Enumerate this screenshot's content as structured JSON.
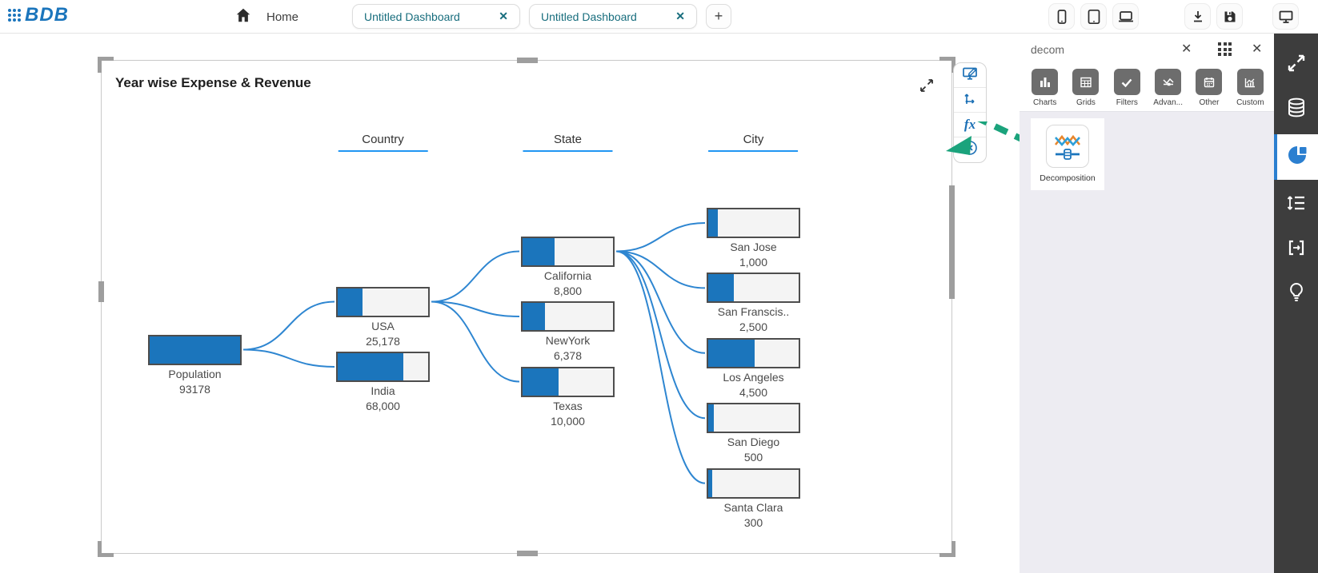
{
  "topbar": {
    "logo_text": "BDB",
    "home_label": "Home",
    "tabs": [
      {
        "label": "Untitled Dashboard",
        "close_icon": "✕"
      },
      {
        "label": "Untitled Dashboard",
        "close_icon": "✕"
      }
    ],
    "new_tab_label": "+"
  },
  "widget": {
    "title": "Year wise Expense & Revenue",
    "toolbar": {
      "fx_label": "fx"
    }
  },
  "chart_data": {
    "type": "decomposition_tree",
    "title": "Year wise Expense & Revenue",
    "column_headers": [
      "Country",
      "State",
      "City"
    ],
    "legend_position": "none",
    "nodes": [
      {
        "id": "population",
        "label": "Population",
        "value": 93178,
        "value_label": "93178",
        "level": 0,
        "slot": 0,
        "parent": null,
        "fill_pct": 100
      },
      {
        "id": "usa",
        "label": "USA",
        "value": 25178,
        "value_label": "25,178",
        "level": 1,
        "slot": 0,
        "parent": "population",
        "fill_pct": 27
      },
      {
        "id": "india",
        "label": "India",
        "value": 68000,
        "value_label": "68,000",
        "level": 1,
        "slot": 1,
        "parent": "population",
        "fill_pct": 73
      },
      {
        "id": "california",
        "label": "California",
        "value": 8800,
        "value_label": "8,800",
        "level": 2,
        "slot": 0,
        "parent": "usa",
        "fill_pct": 35
      },
      {
        "id": "newyork",
        "label": "NewYork",
        "value": 6378,
        "value_label": "6,378",
        "level": 2,
        "slot": 1,
        "parent": "usa",
        "fill_pct": 25
      },
      {
        "id": "texas",
        "label": "Texas",
        "value": 10000,
        "value_label": "10,000",
        "level": 2,
        "slot": 2,
        "parent": "usa",
        "fill_pct": 40
      },
      {
        "id": "san-jose",
        "label": "San Jose",
        "value": 1000,
        "value_label": "1,000",
        "level": 3,
        "slot": 0,
        "parent": "california",
        "fill_pct": 11
      },
      {
        "id": "san-francisco",
        "label": "San Franscis..",
        "value": 2500,
        "value_label": "2,500",
        "level": 3,
        "slot": 1,
        "parent": "california",
        "fill_pct": 28
      },
      {
        "id": "los-angeles",
        "label": "Los Angeles",
        "value": 4500,
        "value_label": "4,500",
        "level": 3,
        "slot": 2,
        "parent": "california",
        "fill_pct": 51
      },
      {
        "id": "san-diego",
        "label": "San Diego",
        "value": 500,
        "value_label": "500",
        "level": 3,
        "slot": 3,
        "parent": "california",
        "fill_pct": 6
      },
      {
        "id": "santa-clara",
        "label": "Santa Clara",
        "value": 300,
        "value_label": "300",
        "level": 3,
        "slot": 4,
        "parent": "california",
        "fill_pct": 4
      }
    ],
    "colors": {
      "node_fill": "#1b75bc",
      "node_background": "#f4f4f4",
      "node_border": "#4d4d4d",
      "link": "#2e86d1",
      "header_underline": "#2196f3"
    }
  },
  "right_panel": {
    "search_value": "decom",
    "clear_icon": "✕",
    "close_icon": "✕",
    "categories": [
      {
        "label": "Charts"
      },
      {
        "label": "Grids"
      },
      {
        "label": "Filters"
      },
      {
        "label": "Advan..."
      },
      {
        "label": "Other"
      },
      {
        "label": "Custom"
      }
    ],
    "widgets": [
      {
        "label": "Decomposition"
      }
    ]
  },
  "colors": {
    "arrow_green": "#1ba37c",
    "sidebar_bg": "#3d3d3d",
    "tab_text": "#176d7d",
    "toolbar_icon_blue": "#1a6fb5"
  }
}
